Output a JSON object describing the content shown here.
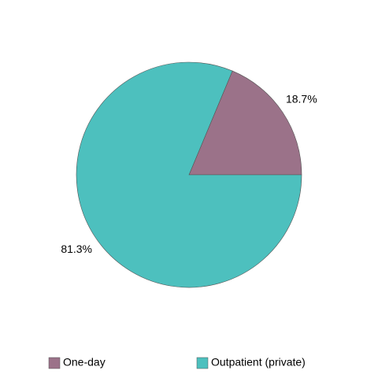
{
  "chart_data": {
    "type": "pie",
    "categories": [
      "One-day",
      "Outpatient (private)"
    ],
    "values": [
      18.7,
      81.3
    ],
    "value_labels": [
      "18.7%",
      "81.3%"
    ],
    "colors": [
      "#9b7289",
      "#4dc0be"
    ],
    "legend": "bottom"
  }
}
